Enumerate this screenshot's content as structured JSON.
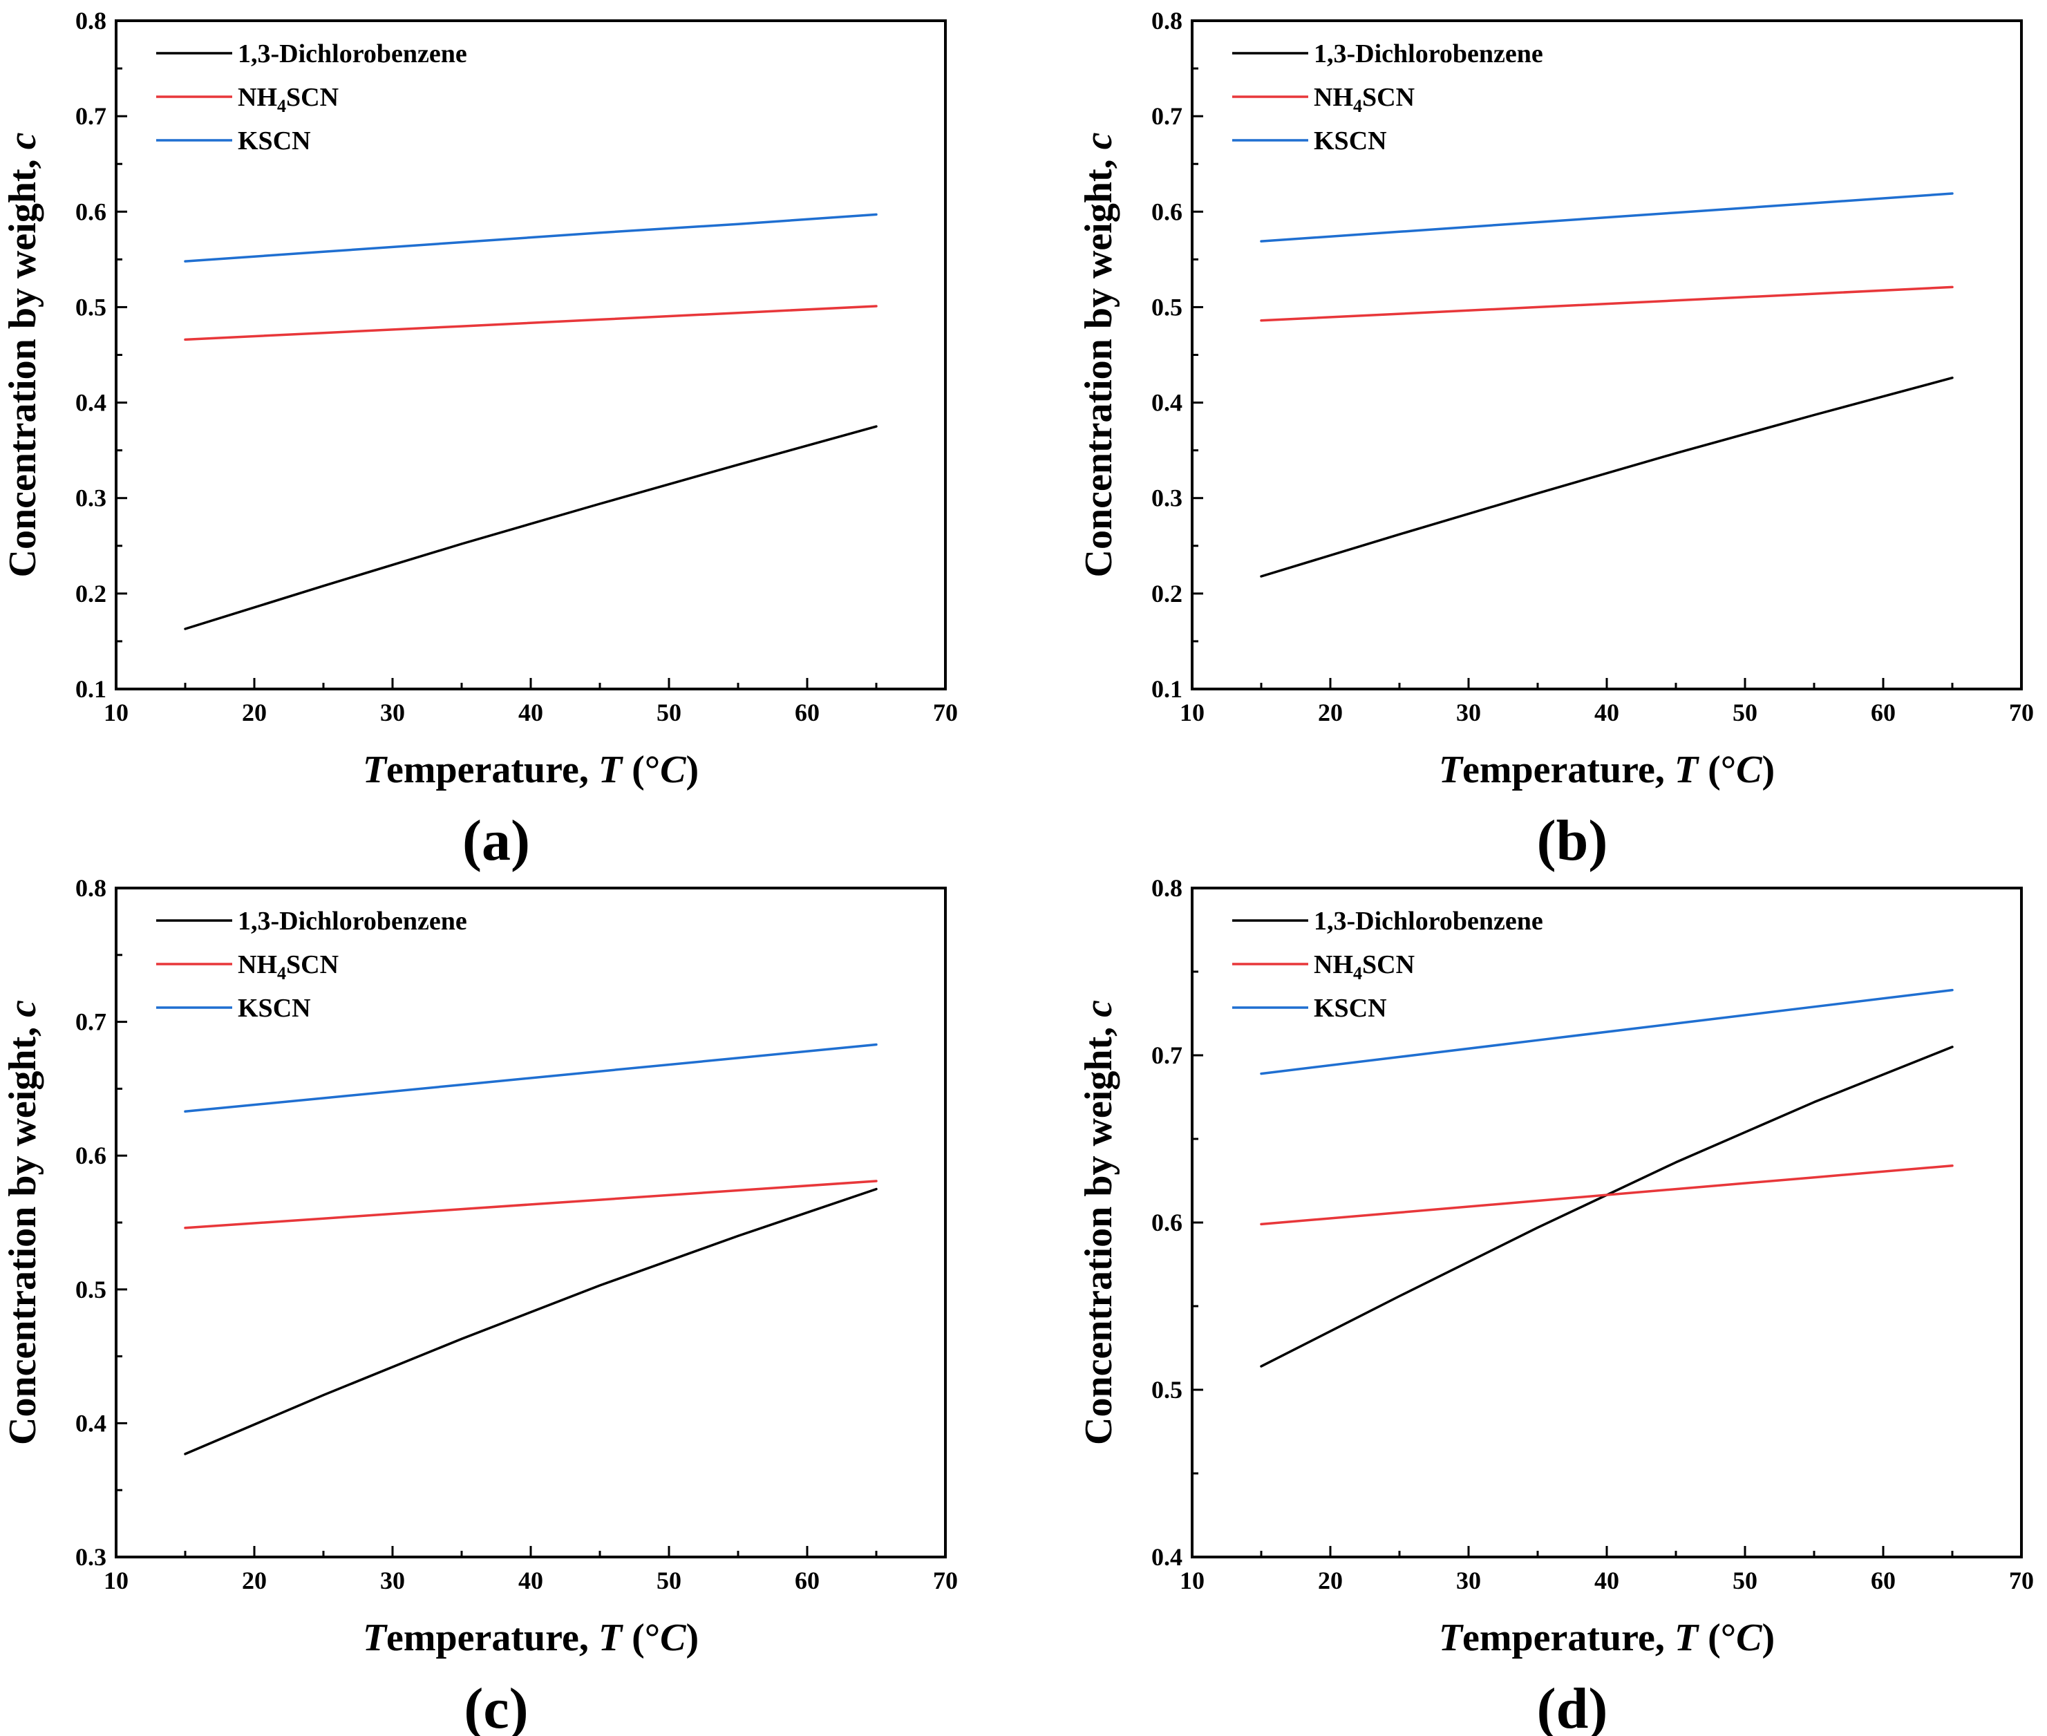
{
  "chart_data": [
    {
      "type": "line",
      "panel_label": "(a)",
      "xlabel": "Temperature, T (°C)",
      "ylabel": "Concentration by weight, c",
      "xlim": [
        10,
        70
      ],
      "ylim": [
        0.1,
        0.8
      ],
      "xticks": [
        10,
        20,
        30,
        40,
        50,
        60,
        70
      ],
      "yticks": [
        0.1,
        0.2,
        0.3,
        0.4,
        0.5,
        0.6,
        0.7,
        0.8
      ],
      "legend_position": "top-left",
      "x": [
        15,
        25,
        35,
        45,
        55,
        65
      ],
      "series": [
        {
          "name": "1,3-Dichlorobenzene",
          "color": "#000000",
          "values": [
            0.163,
            0.208,
            0.252,
            0.294,
            0.335,
            0.375
          ]
        },
        {
          "name": "NH4SCN",
          "color": "#e8373a",
          "values": [
            0.466,
            0.473,
            0.48,
            0.487,
            0.494,
            0.501
          ]
        },
        {
          "name": "KSCN",
          "color": "#1f6fd1",
          "values": [
            0.548,
            0.558,
            0.568,
            0.578,
            0.587,
            0.597
          ]
        }
      ]
    },
    {
      "type": "line",
      "panel_label": "(b)",
      "xlabel": "Temperature, T (°C)",
      "ylabel": "Concentration by weight, c",
      "xlim": [
        10,
        70
      ],
      "ylim": [
        0.1,
        0.8
      ],
      "xticks": [
        10,
        20,
        30,
        40,
        50,
        60,
        70
      ],
      "yticks": [
        0.1,
        0.2,
        0.3,
        0.4,
        0.5,
        0.6,
        0.7,
        0.8
      ],
      "legend_position": "top-left",
      "x": [
        15,
        25,
        35,
        45,
        55,
        65
      ],
      "series": [
        {
          "name": "1,3-Dichlorobenzene",
          "color": "#000000",
          "values": [
            0.218,
            0.262,
            0.305,
            0.347,
            0.387,
            0.426
          ]
        },
        {
          "name": "NH4SCN",
          "color": "#e8373a",
          "values": [
            0.486,
            0.493,
            0.5,
            0.507,
            0.514,
            0.521
          ]
        },
        {
          "name": "KSCN",
          "color": "#1f6fd1",
          "values": [
            0.569,
            0.579,
            0.589,
            0.599,
            0.609,
            0.619
          ]
        }
      ]
    },
    {
      "type": "line",
      "panel_label": "(c)",
      "xlabel": "Temperature, T (°C)",
      "ylabel": "Concentration by weight, c",
      "xlim": [
        10,
        70
      ],
      "ylim": [
        0.3,
        0.8
      ],
      "xticks": [
        10,
        20,
        30,
        40,
        50,
        60,
        70
      ],
      "yticks": [
        0.3,
        0.4,
        0.5,
        0.6,
        0.7,
        0.8
      ],
      "legend_position": "top-left",
      "x": [
        15,
        25,
        35,
        45,
        55,
        65
      ],
      "series": [
        {
          "name": "1,3-Dichlorobenzene",
          "color": "#000000",
          "values": [
            0.377,
            0.421,
            0.463,
            0.503,
            0.54,
            0.575
          ]
        },
        {
          "name": "NH4SCN",
          "color": "#e8373a",
          "values": [
            0.546,
            0.553,
            0.56,
            0.567,
            0.574,
            0.581
          ]
        },
        {
          "name": "KSCN",
          "color": "#1f6fd1",
          "values": [
            0.633,
            0.643,
            0.653,
            0.663,
            0.673,
            0.683
          ]
        }
      ]
    },
    {
      "type": "line",
      "panel_label": "(d)",
      "xlabel": "Temperature, T (°C)",
      "ylabel": "Concentration by weight, c",
      "xlim": [
        10,
        70
      ],
      "ylim": [
        0.4,
        0.8
      ],
      "xticks": [
        10,
        20,
        30,
        40,
        50,
        60,
        70
      ],
      "yticks": [
        0.4,
        0.5,
        0.6,
        0.7,
        0.8
      ],
      "legend_position": "top-left",
      "x": [
        15,
        25,
        35,
        45,
        55,
        65
      ],
      "series": [
        {
          "name": "1,3-Dichlorobenzene",
          "color": "#000000",
          "values": [
            0.514,
            0.556,
            0.597,
            0.636,
            0.672,
            0.705
          ]
        },
        {
          "name": "NH4SCN",
          "color": "#e8373a",
          "values": [
            0.599,
            0.606,
            0.613,
            0.62,
            0.627,
            0.634
          ]
        },
        {
          "name": "KSCN",
          "color": "#1f6fd1",
          "values": [
            0.689,
            0.699,
            0.709,
            0.719,
            0.729,
            0.739
          ]
        }
      ]
    }
  ]
}
